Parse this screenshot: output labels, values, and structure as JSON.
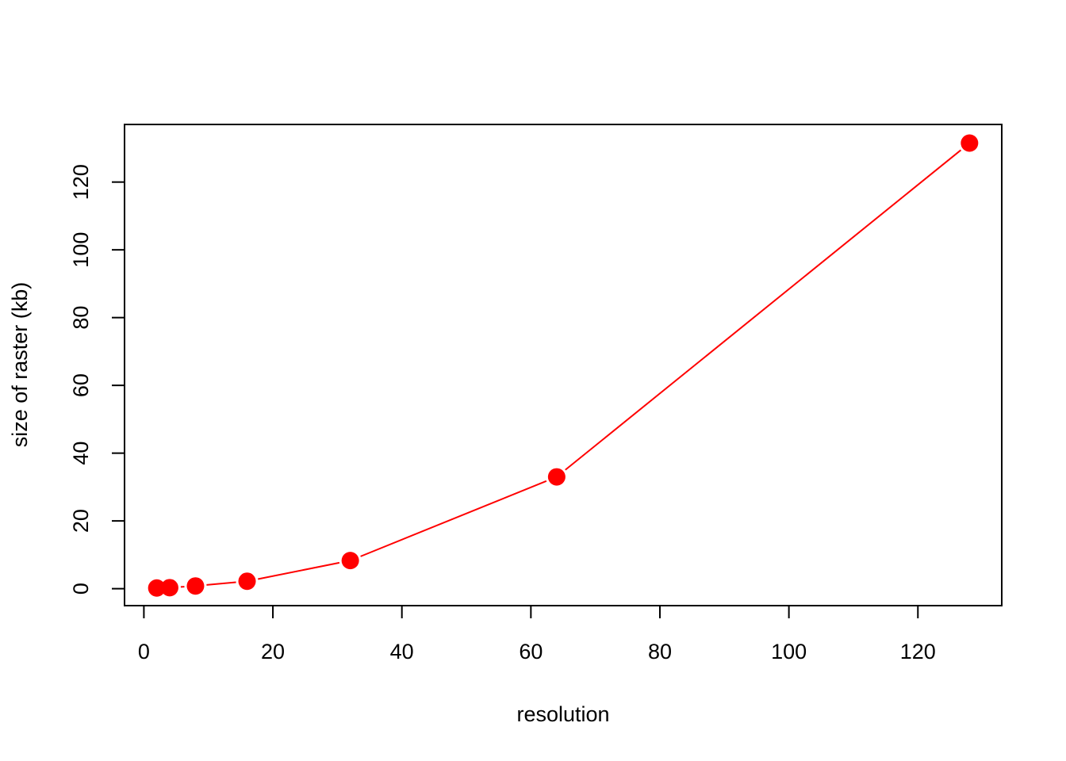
{
  "chart_data": {
    "type": "line",
    "title": "",
    "xlabel": "resolution",
    "ylabel": "size of raster (kb)",
    "x": [
      2,
      4,
      8,
      16,
      32,
      64,
      128
    ],
    "series": [
      {
        "values": [
          0.2,
          0.3,
          0.8,
          2.2,
          8.3,
          33,
          131.5
        ],
        "color": "#ff0000"
      }
    ],
    "xlim": [
      -3,
      133
    ],
    "ylim": [
      -5,
      137
    ],
    "xticks": [
      0,
      20,
      40,
      60,
      80,
      100,
      120
    ],
    "yticks": [
      0,
      20,
      40,
      60,
      80,
      100,
      120
    ],
    "grid": false,
    "markers": "filled-circle"
  }
}
